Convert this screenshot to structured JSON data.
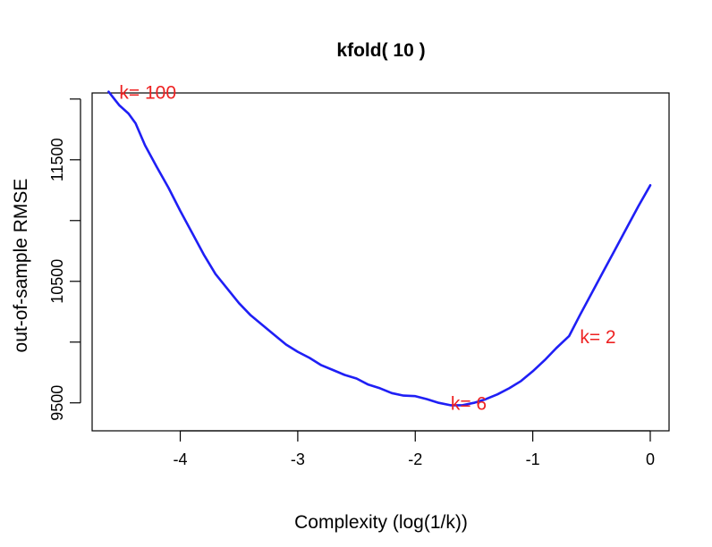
{
  "colors": {
    "line": "#1f1ff5",
    "annotation": "#ee2222",
    "axis": "#000000"
  },
  "chart_data": {
    "type": "line",
    "title": "kfold( 10 )",
    "xlabel": "Complexity (log(1/k))",
    "ylabel": "out-of-sample RMSE",
    "xlim": [
      -4.75,
      0.16
    ],
    "ylim": [
      9270,
      12050
    ],
    "xticks": [
      -4,
      -3,
      -2,
      -1,
      0
    ],
    "xtick_labels": [
      "-4",
      "-3",
      "-2",
      "-1",
      "0"
    ],
    "yticks": [
      9500,
      10000,
      10500,
      11000,
      11500,
      12000
    ],
    "ytick_labels": [
      "9500",
      "",
      "10500",
      "",
      "11500",
      ""
    ],
    "grid": false,
    "series": [
      {
        "x": [
          -4.61,
          -4.52,
          -4.44,
          -4.38,
          -4.3,
          -4.2,
          -4.1,
          -4.0,
          -3.9,
          -3.8,
          -3.7,
          -3.6,
          -3.5,
          -3.4,
          -3.3,
          -3.2,
          -3.1,
          -3.0,
          -2.9,
          -2.8,
          -2.7,
          -2.6,
          -2.5,
          -2.4,
          -2.3,
          -2.2,
          -2.1,
          -2.0,
          -1.9,
          -1.8,
          -1.7,
          -1.6,
          -1.5,
          -1.4,
          -1.3,
          -1.2,
          -1.1,
          -1.0,
          -0.9,
          -0.8,
          -0.69,
          -0.6,
          -0.5,
          -0.4,
          -0.3,
          -0.2,
          -0.1,
          0.0
        ],
        "y": [
          12060,
          11950,
          11880,
          11800,
          11620,
          11440,
          11270,
          11080,
          10900,
          10720,
          10560,
          10440,
          10320,
          10220,
          10140,
          10060,
          9980,
          9920,
          9870,
          9810,
          9770,
          9730,
          9700,
          9650,
          9620,
          9580,
          9560,
          9555,
          9530,
          9500,
          9480,
          9480,
          9500,
          9530,
          9570,
          9620,
          9680,
          9760,
          9850,
          9950,
          10050,
          10220,
          10400,
          10580,
          10760,
          10940,
          11120,
          11290
        ]
      }
    ],
    "annotations": [
      {
        "label": "k= 100",
        "x": -4.61,
        "y": 12060
      },
      {
        "label": "k= 6",
        "x": -1.79,
        "y": 9500
      },
      {
        "label": "k= 2",
        "x": -0.69,
        "y": 10050
      }
    ]
  }
}
